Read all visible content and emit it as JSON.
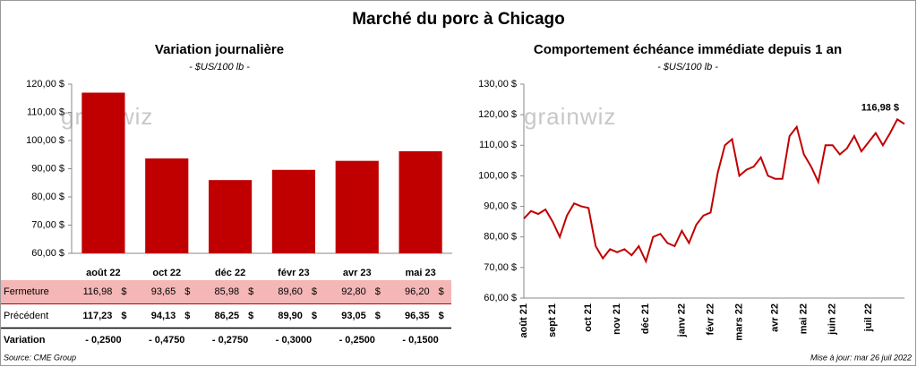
{
  "title": "Marché du porc à Chicago",
  "chart_data": [
    {
      "type": "bar",
      "title": "Variation journalière",
      "subtitle": "- $US/100 lb -",
      "categories": [
        "août 22",
        "oct 22",
        "déc 22",
        "févr 23",
        "avr 23",
        "mai 23"
      ],
      "values": [
        116.98,
        93.65,
        85.98,
        89.6,
        92.8,
        96.2
      ],
      "color": "#c00000",
      "ylim": [
        60,
        120
      ],
      "yticks": [
        {
          "value": 60,
          "label": "60,00 $"
        },
        {
          "value": 70,
          "label": "70,00 $"
        },
        {
          "value": 80,
          "label": "80,00 $"
        },
        {
          "value": 90,
          "label": "90,00 $"
        },
        {
          "value": 100,
          "label": "100,00 $"
        },
        {
          "value": 110,
          "label": "110,00 $"
        },
        {
          "value": 120,
          "label": "120,00 $"
        }
      ],
      "watermark": "grainwiz"
    },
    {
      "type": "line",
      "title": "Comportement  échéance immédiate depuis 1 an",
      "subtitle": "- $US/100 lb -",
      "categories": [
        "août 21",
        null,
        null,
        null,
        "sept 21",
        null,
        null,
        null,
        null,
        "oct 21",
        null,
        null,
        null,
        "nov 21",
        null,
        null,
        null,
        "déc 21",
        null,
        null,
        null,
        null,
        "janv 22",
        null,
        null,
        null,
        "févr 22",
        null,
        null,
        null,
        "mars 22",
        null,
        null,
        null,
        null,
        "avr 22",
        null,
        null,
        null,
        "mai 22",
        null,
        null,
        null,
        "juin 22",
        null,
        null,
        null,
        null,
        "juil 22",
        null,
        null,
        null,
        null,
        null
      ],
      "values": [
        86,
        88.5,
        87.5,
        89,
        85,
        80,
        87,
        91,
        90,
        89.5,
        77,
        73,
        76,
        75,
        76,
        74,
        77,
        72,
        80,
        81,
        78,
        77,
        82,
        78,
        84,
        87,
        88,
        101,
        110,
        112,
        100,
        102,
        103,
        106,
        100,
        99,
        99,
        113,
        116,
        107,
        103,
        98,
        110,
        110,
        107,
        109,
        113,
        108,
        111,
        114,
        110,
        114,
        118.5,
        116.98
      ],
      "color": "#c00000",
      "ylim": [
        60,
        130
      ],
      "yticks": [
        {
          "value": 60,
          "label": "60,00 $"
        },
        {
          "value": 70,
          "label": "70,00 $"
        },
        {
          "value": 80,
          "label": "80,00 $"
        },
        {
          "value": 90,
          "label": "90,00 $"
        },
        {
          "value": 100,
          "label": "100,00 $"
        },
        {
          "value": 110,
          "label": "110,00 $"
        },
        {
          "value": 120,
          "label": "120,00 $"
        },
        {
          "value": 130,
          "label": "130,00 $"
        }
      ],
      "annotation": "116,98 $",
      "watermark": "grainwiz"
    }
  ],
  "table": {
    "rows": [
      {
        "label": "Fermeture",
        "cells": [
          "116,98",
          "93,65",
          "85,98",
          "89,60",
          "92,80",
          "96,20"
        ],
        "unit": "$"
      },
      {
        "label": "Précédent",
        "cells": [
          "117,23",
          "94,13",
          "86,25",
          "89,90",
          "93,05",
          "96,35"
        ],
        "unit": "$"
      },
      {
        "label": "Variation",
        "cells": [
          "- 0,2500",
          "- 0,4750",
          "- 0,2750",
          "- 0,3000",
          "- 0,2500",
          "- 0,1500"
        ]
      }
    ]
  },
  "source": "Source: CME Group",
  "updated": "Mise à jour: mar 26 juil 2022"
}
